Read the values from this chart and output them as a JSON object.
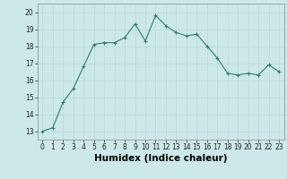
{
  "x": [
    0,
    1,
    2,
    3,
    4,
    5,
    6,
    7,
    8,
    9,
    10,
    11,
    12,
    13,
    14,
    15,
    16,
    17,
    18,
    19,
    20,
    21,
    22,
    23
  ],
  "y": [
    13.0,
    13.2,
    14.7,
    15.5,
    16.8,
    18.1,
    18.2,
    18.2,
    18.5,
    19.3,
    18.3,
    19.8,
    19.2,
    18.8,
    18.6,
    18.7,
    18.0,
    17.3,
    16.4,
    16.3,
    16.4,
    16.3,
    16.9,
    16.5
  ],
  "line_color": "#2e7d6e",
  "marker_color": "#2e7d6e",
  "bg_color": "#cce8e8",
  "grid_color": "#b8d8d8",
  "xlabel": "Humidex (Indice chaleur)",
  "xlim": [
    -0.5,
    23.5
  ],
  "ylim": [
    12.5,
    20.5
  ],
  "yticks": [
    13,
    14,
    15,
    16,
    17,
    18,
    19,
    20
  ],
  "xticks": [
    0,
    1,
    2,
    3,
    4,
    5,
    6,
    7,
    8,
    9,
    10,
    11,
    12,
    13,
    14,
    15,
    16,
    17,
    18,
    19,
    20,
    21,
    22,
    23
  ],
  "tick_fontsize": 5.5,
  "label_fontsize": 7.5
}
